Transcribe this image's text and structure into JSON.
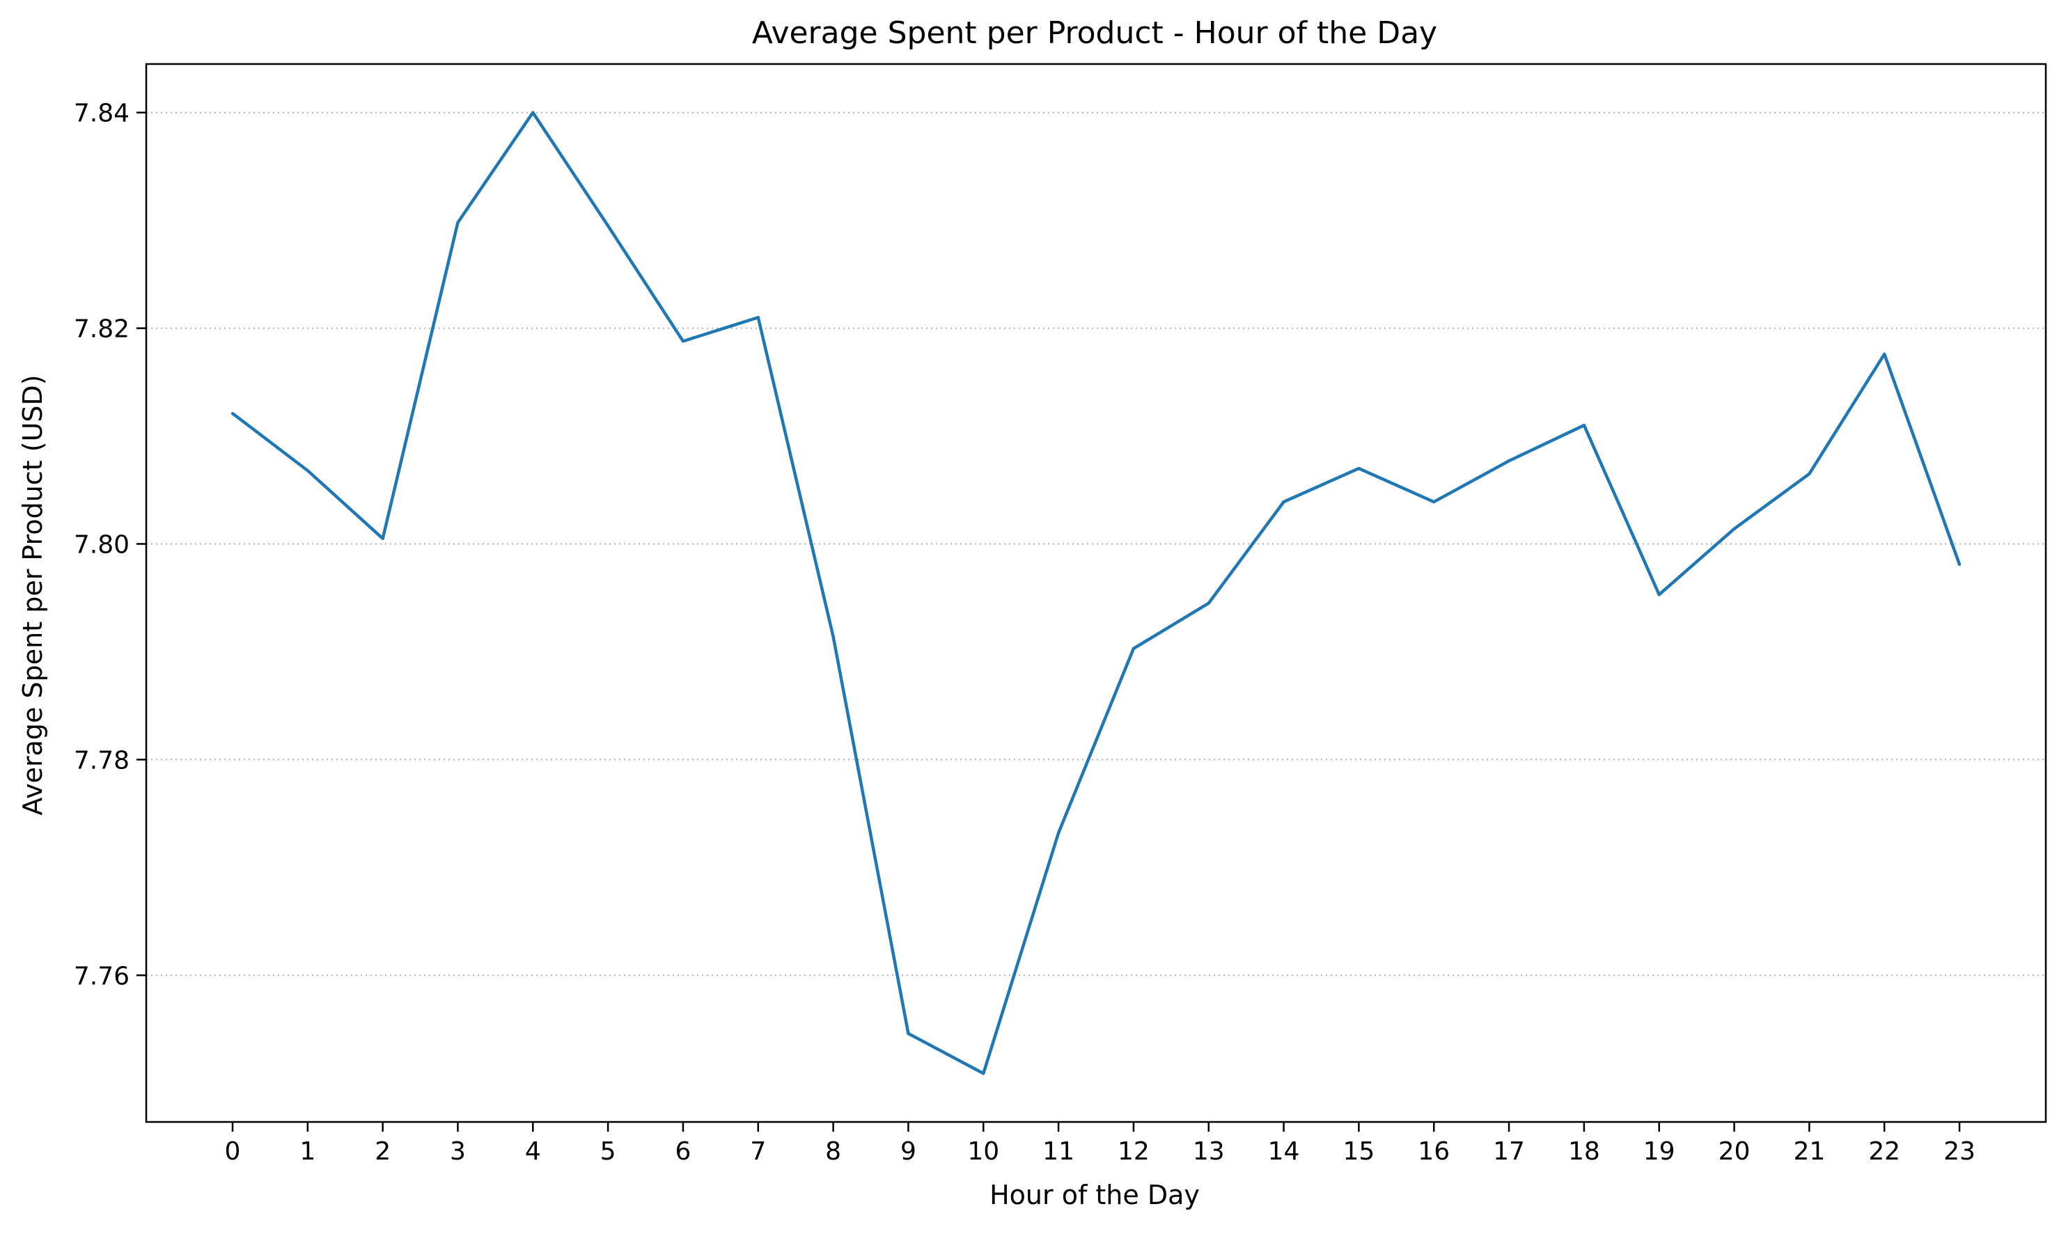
{
  "chart_data": {
    "type": "line",
    "title": "Average Spent per Product - Hour of the Day",
    "xlabel": "Hour of the Day",
    "ylabel": "Average Spent per Product (USD)",
    "x": [
      0,
      1,
      2,
      3,
      4,
      5,
      6,
      7,
      8,
      9,
      10,
      11,
      12,
      13,
      14,
      15,
      16,
      17,
      18,
      19,
      20,
      21,
      22,
      23
    ],
    "x_tick_labels": [
      "0",
      "1",
      "2",
      "3",
      "4",
      "5",
      "6",
      "7",
      "8",
      "9",
      "10",
      "11",
      "12",
      "13",
      "14",
      "15",
      "16",
      "17",
      "18",
      "19",
      "20",
      "21",
      "22",
      "23"
    ],
    "series": [
      {
        "color": "#1f77b4",
        "values": [
          7.8121,
          7.8068,
          7.8005,
          7.8298,
          7.84,
          7.8295,
          7.8188,
          7.821,
          7.7914,
          7.7546,
          7.7509,
          7.7732,
          7.7903,
          7.7945,
          7.8039,
          7.807,
          7.8039,
          7.8077,
          7.811,
          7.7953,
          7.8014,
          7.8065,
          7.8176,
          7.7981
        ]
      }
    ],
    "y_ticks": [
      7.76,
      7.78,
      7.8,
      7.82,
      7.84
    ],
    "y_tick_labels": [
      "7.76",
      "7.78",
      "7.80",
      "7.82",
      "7.84"
    ],
    "xlim": [
      -1.15,
      24.15
    ],
    "ylim": [
      7.7464,
      7.8445
    ],
    "grid": "y-dotted",
    "legend": "none"
  }
}
